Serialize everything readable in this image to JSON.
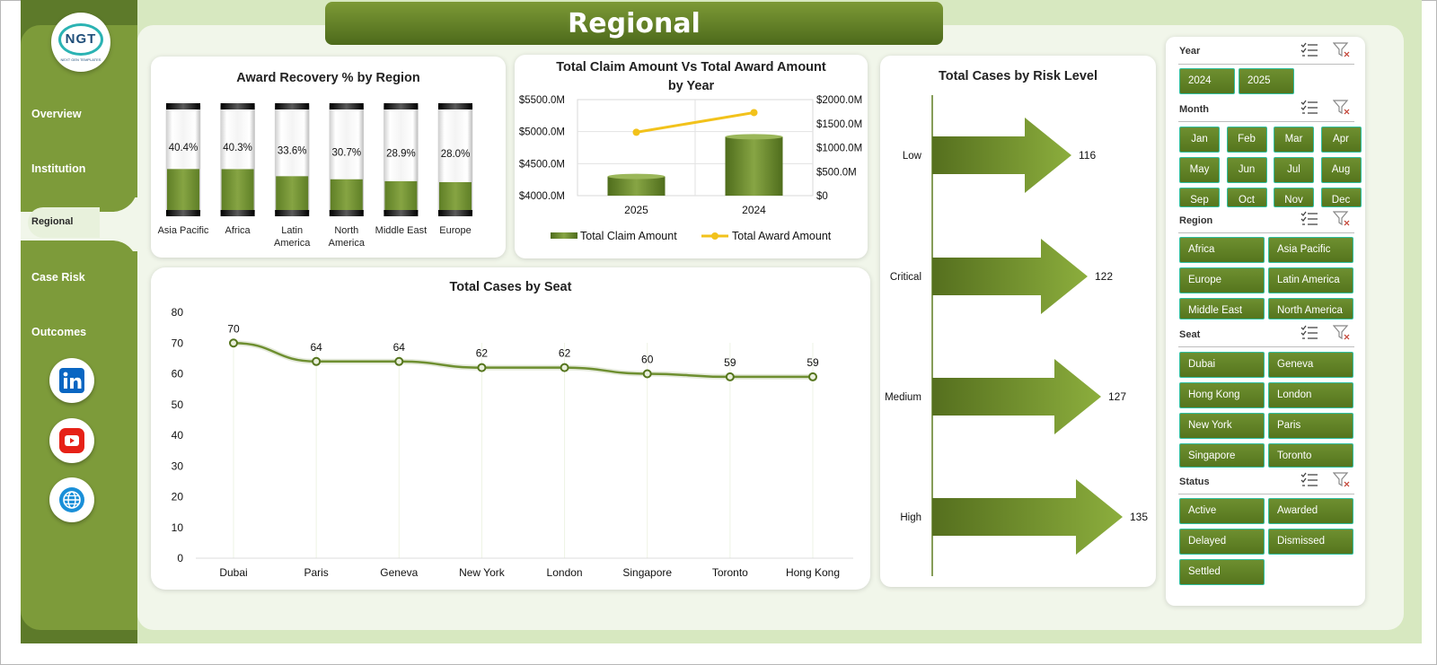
{
  "header": {
    "title": "Regional"
  },
  "logo": {
    "text": "NGT",
    "sub": "NEXT GEN TEMPLATES"
  },
  "nav": {
    "overview": "Overview",
    "institution": "Institution",
    "regional": "Regional",
    "case_risk": "Case Risk",
    "outcomes": "Outcomes"
  },
  "social": [
    "linkedin-icon",
    "youtube-icon",
    "globe-icon"
  ],
  "colors": {
    "accent_dark": "#4d6a1b",
    "accent": "#6e8f30",
    "chip_border": "#2fbfa0",
    "line_yellow": "#f2c21b"
  },
  "chart_data": [
    {
      "id": "award_recovery",
      "type": "bar",
      "title": "Award Recovery % by Region",
      "categories": [
        "Asia Pacific",
        "Africa",
        "Latin America",
        "North America",
        "Middle East",
        "Europe"
      ],
      "category_lines": [
        [
          "Asia Pacific"
        ],
        [
          "Africa"
        ],
        [
          "Latin",
          "America"
        ],
        [
          "North",
          "America"
        ],
        [
          "Middle East"
        ],
        [
          "Europe"
        ]
      ],
      "values": [
        40.4,
        40.3,
        33.6,
        30.7,
        28.9,
        28.0
      ],
      "labels": [
        "40.4%",
        "40.3%",
        "33.6%",
        "30.7%",
        "28.9%",
        "28.0%"
      ],
      "ylim": [
        0,
        100
      ]
    },
    {
      "id": "claim_vs_award",
      "type": "bar",
      "title_lines": [
        "Total Claim Amount Vs Total Award Amount",
        "by Year"
      ],
      "categories": [
        "2025",
        "2024"
      ],
      "series": [
        {
          "name": "Total Claim Amount",
          "type": "bar",
          "axis": "left",
          "values": [
            4300,
            4920
          ]
        },
        {
          "name": "Total Award Amount",
          "type": "line",
          "axis": "right",
          "values": [
            1320,
            1730
          ]
        }
      ],
      "y_left": {
        "ticks": [
          "$5500.0M",
          "$5000.0M",
          "$4500.0M",
          "$4000.0M"
        ],
        "ylim": [
          4000,
          5500
        ]
      },
      "y_right": {
        "ticks": [
          "$2000.0M",
          "$1500.0M",
          "$1000.0M",
          "$500.0M",
          "$0"
        ],
        "ylim": [
          0,
          2000
        ]
      }
    },
    {
      "id": "cases_by_risk",
      "type": "bar",
      "title": "Total Cases by Risk Level",
      "categories": [
        "Low",
        "Critical",
        "Medium",
        "High"
      ],
      "values": [
        116,
        122,
        127,
        135
      ]
    },
    {
      "id": "cases_by_seat",
      "type": "line",
      "title": "Total Cases by Seat",
      "categories": [
        "Dubai",
        "Paris",
        "Geneva",
        "New York",
        "London",
        "Singapore",
        "Toronto",
        "Hong Kong"
      ],
      "values": [
        70,
        64,
        64,
        62,
        62,
        60,
        59,
        59
      ],
      "yticks": [
        "80",
        "70",
        "60",
        "50",
        "40",
        "30",
        "20",
        "10",
        "0"
      ],
      "ylim": [
        0,
        80
      ],
      "grid": "vertical"
    }
  ],
  "slicers": {
    "year": {
      "title": "Year",
      "items": [
        "2024",
        "2025"
      ]
    },
    "month": {
      "title": "Month",
      "items": [
        "Jan",
        "Feb",
        "Mar",
        "Apr",
        "May",
        "Jun",
        "Jul",
        "Aug",
        "Sep",
        "Oct",
        "Nov",
        "Dec"
      ]
    },
    "region": {
      "title": "Region",
      "items": [
        "Africa",
        "Asia Pacific",
        "Europe",
        "Latin America",
        "Middle East",
        "North America"
      ]
    },
    "seat": {
      "title": "Seat",
      "items": [
        "Dubai",
        "Geneva",
        "Hong Kong",
        "London",
        "New York",
        "Paris",
        "Singapore",
        "Toronto"
      ]
    },
    "status": {
      "title": "Status",
      "items": [
        "Active",
        "Awarded",
        "Delayed",
        "Dismissed",
        "Settled"
      ]
    }
  }
}
